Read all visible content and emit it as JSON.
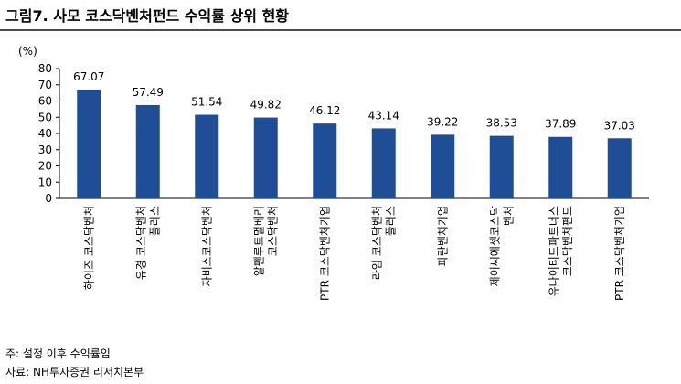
{
  "figure": {
    "title": "그림7. 사모 코스닥벤처펀드 수익률 상위 현황",
    "note": "주: 설정 이후 수익률임",
    "source": "자료: NH투자증권 리서치본부"
  },
  "chart_data": {
    "type": "bar",
    "y_unit_label": "(%)",
    "ylim": [
      0,
      80
    ],
    "yticks": [
      0,
      10,
      20,
      30,
      40,
      50,
      60,
      70,
      80
    ],
    "grid": false,
    "bar_color": "#1f4e96",
    "categories": [
      [
        "하이즈 코스닥벤처"
      ],
      [
        "유경 코스닥벤처",
        "플러스"
      ],
      [
        "자비스코스닥벤처"
      ],
      [
        "알펜루트멀베리",
        "코스닥벤처"
      ],
      [
        "PTR 코스닥벤처기업"
      ],
      [
        "라임 코스닥벤처",
        "플러스"
      ],
      [
        "파란벤처기업"
      ],
      [
        "제이씨에셋코스닥",
        "벤처"
      ],
      [
        "유나이티드파트너스",
        "코스닥벤처펀드"
      ],
      [
        "PTR 코스닥벤처기업"
      ]
    ],
    "values": [
      67.07,
      57.49,
      51.54,
      49.82,
      46.12,
      43.14,
      39.22,
      38.53,
      37.89,
      37.03
    ],
    "value_labels": [
      "67.07",
      "57.49",
      "51.54",
      "49.82",
      "46.12",
      "43.14",
      "39.22",
      "38.53",
      "37.89",
      "37.03"
    ]
  }
}
